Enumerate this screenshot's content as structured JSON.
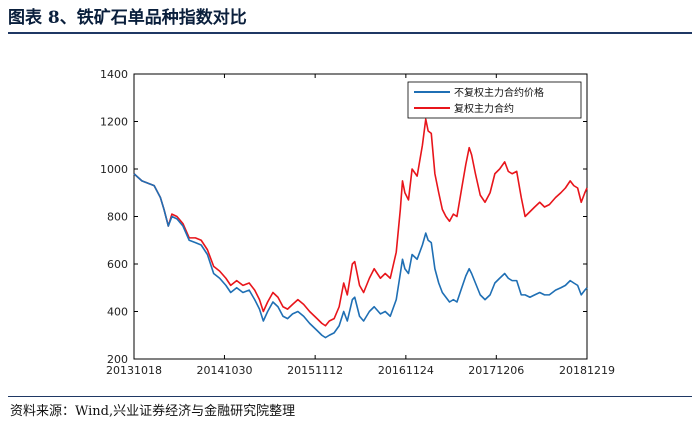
{
  "header": {
    "title": "图表 8、铁矿石单品种指数对比"
  },
  "footer": {
    "source": "资料来源：Wind,兴业证券经济与金融研究院整理"
  },
  "chart_data": {
    "type": "line",
    "title": "",
    "xlabel": "",
    "ylabel": "",
    "ylim": [
      200,
      1400
    ],
    "yticks": [
      200,
      400,
      600,
      800,
      1000,
      1200,
      1400
    ],
    "xlim": [
      "2013-10-18",
      "2018-12-19"
    ],
    "xticks": [
      "20131018",
      "20141030",
      "20151112",
      "20161124",
      "20171206",
      "20181219"
    ],
    "grid": false,
    "legend_position": "top-right",
    "series": [
      {
        "name": "不复权主力合约价格",
        "color": "#1f6fb4",
        "points": [
          [
            "2013-10-18",
            980
          ],
          [
            "2013-11-20",
            950
          ],
          [
            "2014-01-10",
            930
          ],
          [
            "2014-02-05",
            880
          ],
          [
            "2014-02-20",
            830
          ],
          [
            "2014-03-10",
            760
          ],
          [
            "2014-03-25",
            800
          ],
          [
            "2014-04-15",
            790
          ],
          [
            "2014-05-10",
            760
          ],
          [
            "2014-06-05",
            700
          ],
          [
            "2014-07-01",
            690
          ],
          [
            "2014-07-25",
            680
          ],
          [
            "2014-08-20",
            640
          ],
          [
            "2014-09-15",
            560
          ],
          [
            "2014-10-10",
            540
          ],
          [
            "2014-11-05",
            510
          ],
          [
            "2014-11-25",
            480
          ],
          [
            "2014-12-20",
            500
          ],
          [
            "2015-01-15",
            480
          ],
          [
            "2015-02-10",
            490
          ],
          [
            "2015-03-05",
            450
          ],
          [
            "2015-03-25",
            410
          ],
          [
            "2015-04-10",
            360
          ],
          [
            "2015-04-28",
            400
          ],
          [
            "2015-05-20",
            440
          ],
          [
            "2015-06-10",
            420
          ],
          [
            "2015-07-01",
            380
          ],
          [
            "2015-07-20",
            370
          ],
          [
            "2015-08-10",
            390
          ],
          [
            "2015-09-01",
            400
          ],
          [
            "2015-09-25",
            380
          ],
          [
            "2015-10-20",
            350
          ],
          [
            "2015-11-20",
            320
          ],
          [
            "2015-12-10",
            300
          ],
          [
            "2015-12-25",
            290
          ],
          [
            "2016-01-10",
            300
          ],
          [
            "2016-01-30",
            310
          ],
          [
            "2016-02-20",
            340
          ],
          [
            "2016-03-10",
            400
          ],
          [
            "2016-03-25",
            360
          ],
          [
            "2016-04-15",
            450
          ],
          [
            "2016-04-25",
            460
          ],
          [
            "2016-05-15",
            380
          ],
          [
            "2016-06-01",
            360
          ],
          [
            "2016-06-25",
            400
          ],
          [
            "2016-07-15",
            420
          ],
          [
            "2016-08-10",
            390
          ],
          [
            "2016-08-30",
            400
          ],
          [
            "2016-09-20",
            380
          ],
          [
            "2016-10-15",
            450
          ],
          [
            "2016-11-01",
            560
          ],
          [
            "2016-11-10",
            620
          ],
          [
            "2016-11-20",
            580
          ],
          [
            "2016-12-05",
            560
          ],
          [
            "2016-12-20",
            640
          ],
          [
            "2017-01-10",
            620
          ],
          [
            "2017-02-01",
            680
          ],
          [
            "2017-02-15",
            730
          ],
          [
            "2017-02-25",
            700
          ],
          [
            "2017-03-10",
            690
          ],
          [
            "2017-03-25",
            580
          ],
          [
            "2017-04-10",
            520
          ],
          [
            "2017-04-25",
            480
          ],
          [
            "2017-05-10",
            460
          ],
          [
            "2017-05-25",
            440
          ],
          [
            "2017-06-10",
            450
          ],
          [
            "2017-06-25",
            440
          ],
          [
            "2017-07-15",
            500
          ],
          [
            "2017-08-01",
            550
          ],
          [
            "2017-08-15",
            580
          ],
          [
            "2017-08-25",
            560
          ],
          [
            "2017-09-10",
            520
          ],
          [
            "2017-09-30",
            470
          ],
          [
            "2017-10-20",
            450
          ],
          [
            "2017-11-10",
            470
          ],
          [
            "2017-11-30",
            520
          ],
          [
            "2017-12-20",
            540
          ],
          [
            "2018-01-10",
            560
          ],
          [
            "2018-01-25",
            540
          ],
          [
            "2018-02-10",
            530
          ],
          [
            "2018-03-01",
            530
          ],
          [
            "2018-03-20",
            470
          ],
          [
            "2018-04-05",
            470
          ],
          [
            "2018-04-25",
            460
          ],
          [
            "2018-05-15",
            470
          ],
          [
            "2018-06-05",
            480
          ],
          [
            "2018-06-25",
            470
          ],
          [
            "2018-07-15",
            470
          ],
          [
            "2018-08-10",
            490
          ],
          [
            "2018-09-01",
            500
          ],
          [
            "2018-09-20",
            510
          ],
          [
            "2018-10-10",
            530
          ],
          [
            "2018-10-25",
            520
          ],
          [
            "2018-11-10",
            510
          ],
          [
            "2018-11-25",
            470
          ],
          [
            "2018-12-10",
            490
          ],
          [
            "2018-12-19",
            500
          ]
        ]
      },
      {
        "name": "复权主力合约",
        "color": "#e8151b",
        "points": [
          [
            "2013-10-18",
            980
          ],
          [
            "2013-11-20",
            950
          ],
          [
            "2014-01-10",
            930
          ],
          [
            "2014-02-05",
            880
          ],
          [
            "2014-02-20",
            830
          ],
          [
            "2014-03-10",
            760
          ],
          [
            "2014-03-25",
            810
          ],
          [
            "2014-04-15",
            800
          ],
          [
            "2014-05-10",
            770
          ],
          [
            "2014-06-05",
            710
          ],
          [
            "2014-07-01",
            710
          ],
          [
            "2014-07-25",
            700
          ],
          [
            "2014-08-20",
            660
          ],
          [
            "2014-09-15",
            590
          ],
          [
            "2014-10-10",
            570
          ],
          [
            "2014-11-05",
            540
          ],
          [
            "2014-11-25",
            510
          ],
          [
            "2014-12-20",
            530
          ],
          [
            "2015-01-15",
            510
          ],
          [
            "2015-02-10",
            520
          ],
          [
            "2015-03-05",
            490
          ],
          [
            "2015-03-25",
            450
          ],
          [
            "2015-04-10",
            400
          ],
          [
            "2015-04-28",
            440
          ],
          [
            "2015-05-20",
            480
          ],
          [
            "2015-06-10",
            460
          ],
          [
            "2015-07-01",
            420
          ],
          [
            "2015-07-20",
            410
          ],
          [
            "2015-08-10",
            430
          ],
          [
            "2015-09-01",
            450
          ],
          [
            "2015-09-25",
            430
          ],
          [
            "2015-10-20",
            400
          ],
          [
            "2015-11-20",
            370
          ],
          [
            "2015-12-10",
            350
          ],
          [
            "2015-12-25",
            340
          ],
          [
            "2016-01-10",
            360
          ],
          [
            "2016-01-30",
            370
          ],
          [
            "2016-02-20",
            420
          ],
          [
            "2016-03-10",
            520
          ],
          [
            "2016-03-25",
            470
          ],
          [
            "2016-04-15",
            600
          ],
          [
            "2016-04-25",
            610
          ],
          [
            "2016-05-15",
            510
          ],
          [
            "2016-06-01",
            480
          ],
          [
            "2016-06-25",
            540
          ],
          [
            "2016-07-15",
            580
          ],
          [
            "2016-08-10",
            540
          ],
          [
            "2016-08-30",
            560
          ],
          [
            "2016-09-20",
            540
          ],
          [
            "2016-10-15",
            650
          ],
          [
            "2016-11-01",
            830
          ],
          [
            "2016-11-10",
            950
          ],
          [
            "2016-11-20",
            900
          ],
          [
            "2016-12-05",
            870
          ],
          [
            "2016-12-20",
            1000
          ],
          [
            "2017-01-10",
            970
          ],
          [
            "2017-02-01",
            1100
          ],
          [
            "2017-02-15",
            1210
          ],
          [
            "2017-02-25",
            1160
          ],
          [
            "2017-03-10",
            1150
          ],
          [
            "2017-03-25",
            980
          ],
          [
            "2017-04-10",
            900
          ],
          [
            "2017-04-25",
            830
          ],
          [
            "2017-05-10",
            800
          ],
          [
            "2017-05-25",
            780
          ],
          [
            "2017-06-10",
            810
          ],
          [
            "2017-06-25",
            800
          ],
          [
            "2017-07-15",
            920
          ],
          [
            "2017-08-01",
            1020
          ],
          [
            "2017-08-15",
            1090
          ],
          [
            "2017-08-25",
            1060
          ],
          [
            "2017-09-10",
            980
          ],
          [
            "2017-09-30",
            890
          ],
          [
            "2017-10-20",
            860
          ],
          [
            "2017-11-10",
            900
          ],
          [
            "2017-11-30",
            980
          ],
          [
            "2017-12-20",
            1000
          ],
          [
            "2018-01-10",
            1030
          ],
          [
            "2018-01-25",
            990
          ],
          [
            "2018-02-10",
            980
          ],
          [
            "2018-03-01",
            990
          ],
          [
            "2018-03-20",
            880
          ],
          [
            "2018-04-05",
            800
          ],
          [
            "2018-04-25",
            820
          ],
          [
            "2018-05-15",
            840
          ],
          [
            "2018-06-05",
            860
          ],
          [
            "2018-06-25",
            840
          ],
          [
            "2018-07-15",
            850
          ],
          [
            "2018-08-10",
            880
          ],
          [
            "2018-09-01",
            900
          ],
          [
            "2018-09-20",
            920
          ],
          [
            "2018-10-10",
            950
          ],
          [
            "2018-10-25",
            930
          ],
          [
            "2018-11-10",
            920
          ],
          [
            "2018-11-25",
            860
          ],
          [
            "2018-12-10",
            900
          ],
          [
            "2018-12-19",
            920
          ]
        ]
      }
    ]
  }
}
